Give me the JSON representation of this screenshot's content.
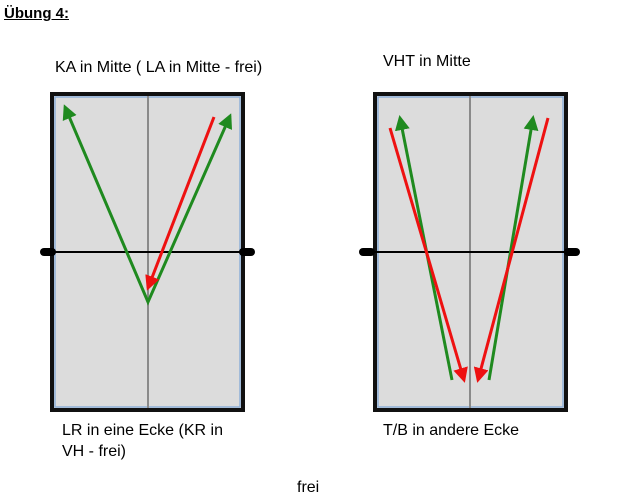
{
  "title": "Übung 4:",
  "tables": [
    {
      "top_label": "KA in Mitte ( LA in Mitte - frei)",
      "bottom_label_line1": "LR in eine Ecke (KR in",
      "bottom_label_line2": "VH - frei)"
    },
    {
      "top_label": "VHT in Mitte",
      "bottom_label_line1": "T/B in andere Ecke"
    }
  ],
  "footer_label": "frei",
  "colors": {
    "table_fill": "#dcdcdc",
    "table_border": "#111111",
    "table_inner_border": "#8fb0d8",
    "center_line": "#8a8a8a",
    "net": "#000000",
    "arrow_green": "#1f8a1f",
    "arrow_red": "#ee1111"
  }
}
